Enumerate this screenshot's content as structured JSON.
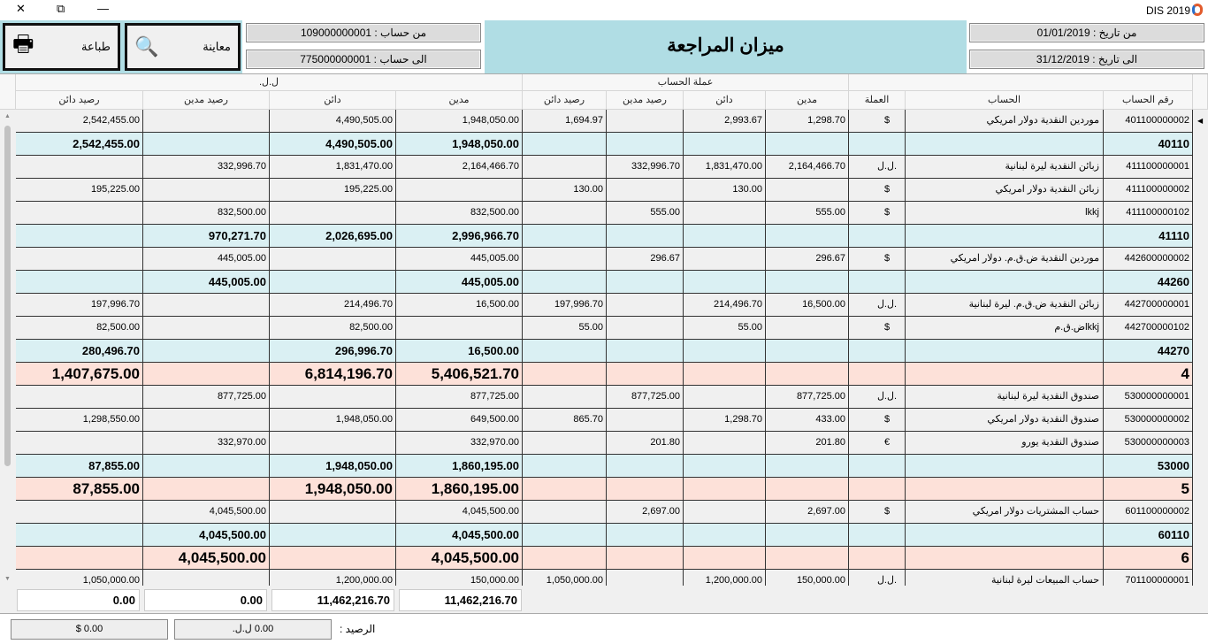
{
  "window": {
    "title": "DIS  2019",
    "close": "✕",
    "restore": "⧉",
    "minimize": "—"
  },
  "toolbar": {
    "print_label": "طباعة",
    "preview_label": "معاينة"
  },
  "filters": {
    "from_account": "من حساب : 109000000001",
    "to_account": "الى حساب : 775000000001",
    "from_date": "من تاريخ : 01/01/2019",
    "to_date": "الى تاريخ : 31/12/2019"
  },
  "report_title": "ميزان المراجعة",
  "colors": {
    "header_bg": "#b0dde4",
    "subtotal_bg": "#daf0f3",
    "group_bg": "#fde1d9"
  },
  "grid": {
    "group_headers": {
      "local": "ل.ل.",
      "account_currency": "عملة الحساب"
    },
    "columns": [
      "رقم الحساب",
      "الحساب",
      "العملة",
      "مدين",
      "دائن",
      "رصيد مدين",
      "رصيد دائن",
      "مدين",
      "دائن",
      "رصيد مدين",
      "رصيد دائن"
    ],
    "rows": [
      {
        "type": "detail",
        "cells": [
          "401100000002",
          "موردين النقدية دولار امريكي",
          "$",
          "1,298.70",
          "2,993.67",
          "",
          "1,694.97",
          "1,948,050.00",
          "4,490,505.00",
          "",
          "2,542,455.00"
        ]
      },
      {
        "type": "sub",
        "cells": [
          "40110",
          "",
          "",
          "",
          "",
          "",
          "",
          "1,948,050.00",
          "4,490,505.00",
          "",
          "2,542,455.00"
        ]
      },
      {
        "type": "detail",
        "cells": [
          "411100000001",
          "زبائن النقدية ليرة لبنانية",
          "ل.ل.",
          "2,164,466.70",
          "1,831,470.00",
          "332,996.70",
          "",
          "2,164,466.70",
          "1,831,470.00",
          "332,996.70",
          ""
        ]
      },
      {
        "type": "detail",
        "cells": [
          "411100000002",
          "زبائن النقدية دولار امريكي",
          "$",
          "",
          "130.00",
          "",
          "130.00",
          "",
          "195,225.00",
          "",
          "195,225.00"
        ]
      },
      {
        "type": "detail",
        "cells": [
          "411100000102",
          "lkkj",
          "$",
          "555.00",
          "",
          "555.00",
          "",
          "832,500.00",
          "",
          "832,500.00",
          ""
        ]
      },
      {
        "type": "sub",
        "cells": [
          "41110",
          "",
          "",
          "",
          "",
          "",
          "",
          "2,996,966.70",
          "2,026,695.00",
          "970,271.70",
          ""
        ]
      },
      {
        "type": "detail",
        "cells": [
          "442600000002",
          "موردين النقدية ض.ق.م. دولار امريكي",
          "$",
          "296.67",
          "",
          "296.67",
          "",
          "445,005.00",
          "",
          "445,005.00",
          ""
        ]
      },
      {
        "type": "sub",
        "cells": [
          "44260",
          "",
          "",
          "",
          "",
          "",
          "",
          "445,005.00",
          "",
          "445,005.00",
          ""
        ]
      },
      {
        "type": "detail",
        "cells": [
          "442700000001",
          "زبائن النقدية ض.ق.م. ليرة لبنانية",
          "ل.ل.",
          "16,500.00",
          "214,496.70",
          "",
          "197,996.70",
          "16,500.00",
          "214,496.70",
          "",
          "197,996.70"
        ]
      },
      {
        "type": "detail",
        "cells": [
          "442700000102",
          "lkkjض.ق.م",
          "$",
          "",
          "55.00",
          "",
          "55.00",
          "",
          "82,500.00",
          "",
          "82,500.00"
        ]
      },
      {
        "type": "sub",
        "cells": [
          "44270",
          "",
          "",
          "",
          "",
          "",
          "",
          "16,500.00",
          "296,996.70",
          "",
          "280,496.70"
        ]
      },
      {
        "type": "grp",
        "cells": [
          "4",
          "",
          "",
          "",
          "",
          "",
          "",
          "5,406,521.70",
          "6,814,196.70",
          "",
          "1,407,675.00"
        ]
      },
      {
        "type": "detail",
        "cells": [
          "530000000001",
          "صندوق النقدية ليرة لبنانية",
          "ل.ل.",
          "877,725.00",
          "",
          "877,725.00",
          "",
          "877,725.00",
          "",
          "877,725.00",
          ""
        ]
      },
      {
        "type": "detail",
        "cells": [
          "530000000002",
          "صندوق النقدية دولار امريكي",
          "$",
          "433.00",
          "1,298.70",
          "",
          "865.70",
          "649,500.00",
          "1,948,050.00",
          "",
          "1,298,550.00"
        ]
      },
      {
        "type": "detail",
        "cells": [
          "530000000003",
          "صندوق النقدية يورو",
          "€",
          "201.80",
          "",
          "201.80",
          "",
          "332,970.00",
          "",
          "332,970.00",
          ""
        ]
      },
      {
        "type": "sub",
        "cells": [
          "53000",
          "",
          "",
          "",
          "",
          "",
          "",
          "1,860,195.00",
          "1,948,050.00",
          "",
          "87,855.00"
        ]
      },
      {
        "type": "grp",
        "cells": [
          "5",
          "",
          "",
          "",
          "",
          "",
          "",
          "1,860,195.00",
          "1,948,050.00",
          "",
          "87,855.00"
        ]
      },
      {
        "type": "detail",
        "cells": [
          "601100000002",
          "حساب المشتريات دولار امريكي",
          "$",
          "2,697.00",
          "",
          "2,697.00",
          "",
          "4,045,500.00",
          "",
          "4,045,500.00",
          ""
        ]
      },
      {
        "type": "sub",
        "cells": [
          "60110",
          "",
          "",
          "",
          "",
          "",
          "",
          "4,045,500.00",
          "",
          "4,045,500.00",
          ""
        ]
      },
      {
        "type": "grp",
        "cells": [
          "6",
          "",
          "",
          "",
          "",
          "",
          "",
          "4,045,500.00",
          "",
          "4,045,500.00",
          ""
        ]
      },
      {
        "type": "detail",
        "cells": [
          "701100000001",
          "حساب المبيعات ليرة لبنانية",
          "ل.ل.",
          "150,000.00",
          "1,200,000.00",
          "",
          "1,050,000.00",
          "150,000.00",
          "1,200,000.00",
          "",
          "1,050,000.00"
        ]
      }
    ]
  },
  "totals": {
    "debit": "11,462,216.70",
    "credit": "11,462,216.70",
    "balance_debit": "0.00",
    "balance_credit": "0.00"
  },
  "balance": {
    "label": "الرصيد :",
    "lbp": "0.00 ل.ل.",
    "usd": "$ 0.00"
  }
}
